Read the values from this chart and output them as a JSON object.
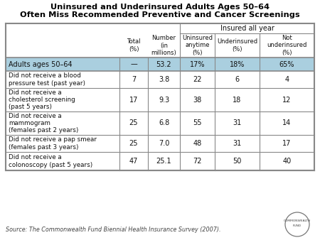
{
  "title_line1": "Uninsured and Underinsured Adults Ages 50–64",
  "title_line2": "Often Miss Recommended Preventive and Cancer Screenings",
  "highlight_row": [
    "Adults ages 50–64",
    "—",
    "53.2",
    "17%",
    "18%",
    "65%"
  ],
  "rows": [
    [
      "Did not receive a blood\npressure test (past year)",
      "7",
      "3.8",
      "22",
      "6",
      "4"
    ],
    [
      "Did not receive a\ncholesterol screening\n(past 5 years)",
      "17",
      "9.3",
      "38",
      "18",
      "12"
    ],
    [
      "Did not receive a\nmammogram\n(females past 2 years)",
      "25",
      "6.8",
      "55",
      "31",
      "14"
    ],
    [
      "Did not receive a pap smear\n(females past 3 years)",
      "25",
      "7.0",
      "48",
      "31",
      "17"
    ],
    [
      "Did not receive a\ncolonoscopy (past 5 years)",
      "47",
      "25.1",
      "72",
      "50",
      "40"
    ]
  ],
  "col_headers": [
    "Total\n(%)",
    "Number\n(in\nmillions)",
    "Uninsured\nanytime\n(%)",
    "Underinsured\n(%)",
    "Not\nunderinsured\n(%)"
  ],
  "source_text": "Source: The Commonwealth Fund Biennial Health Insurance Survey (2007).",
  "highlight_bg": "#aacfdf",
  "border_color": "#888888",
  "text_color": "#111111",
  "title_color": "#000000",
  "fig_width": 4.5,
  "fig_height": 3.38,
  "dpi": 100
}
